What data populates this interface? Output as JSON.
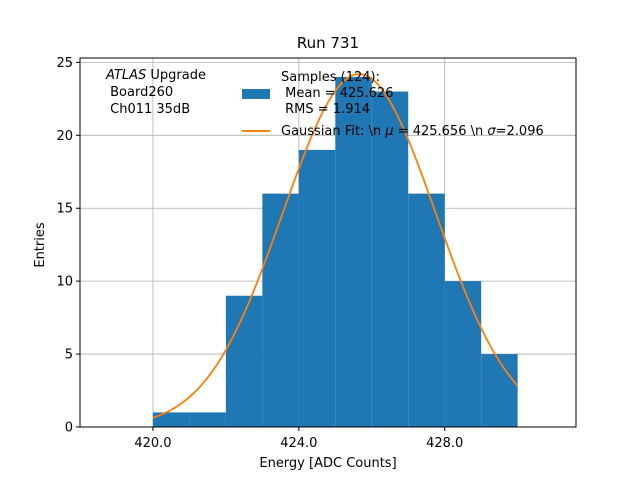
{
  "chart_data": {
    "type": "bar",
    "title": "Run 731",
    "xlabel": "Energy [ADC Counts]",
    "ylabel": "Entries",
    "xlim": [
      418.0,
      431.6
    ],
    "ylim": [
      0,
      25.3
    ],
    "grid": true,
    "bin_edges": [
      420.0,
      421.0,
      422.0,
      423.0,
      424.0,
      425.0,
      426.0,
      427.0,
      428.0,
      429.0,
      430.0
    ],
    "values": [
      1,
      1,
      9,
      16,
      19,
      24,
      23,
      16,
      10,
      5
    ],
    "x_ticks": [
      420.0,
      424.0,
      428.0
    ],
    "x_tick_labels": [
      "420.0",
      "424.0",
      "428.0"
    ],
    "y_ticks": [
      0,
      5,
      10,
      15,
      20,
      25
    ],
    "y_tick_labels": [
      "0",
      "5",
      "10",
      "15",
      "20",
      "25"
    ],
    "fit": {
      "type": "gaussian",
      "mean": 425.656,
      "sigma": 2.096,
      "amplitude": 24.2,
      "x_range": [
        420.0,
        430.0
      ]
    },
    "series": [
      {
        "name": "Samples (124):\n Mean = 425.626\n RMS = 1.914",
        "color": "#1f77b4",
        "kind": "histogram"
      },
      {
        "name": "Gaussian Fit: \\n $\\mu$ = 425.656 \\n $\\sigma$=2.096",
        "color": "#ff7f0e",
        "kind": "line"
      }
    ],
    "annotation": {
      "italic": "ATLAS",
      "rest": " Upgrade",
      "line2": " Board260",
      "line3": " Ch011 35dB"
    },
    "legend": {
      "placement": "top-right",
      "hist_lines": [
        "Samples (124):",
        " Mean = 425.626",
        " RMS = 1.914"
      ],
      "fit_line": {
        "pre": "Gaussian Fit: \\n ",
        "mu": "μ",
        "mid": " = 425.656 \\n ",
        "sigma": "σ",
        "post": "=2.096"
      }
    }
  }
}
